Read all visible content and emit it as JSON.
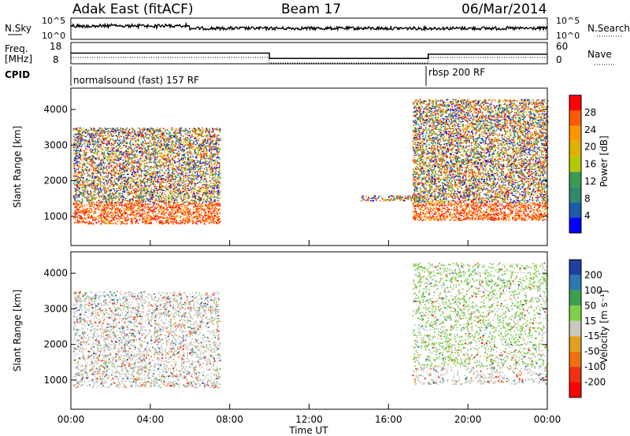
{
  "header": {
    "station": "Adak East (fitACF)",
    "beam": "Beam 17",
    "date": "06/Mar/2014"
  },
  "panels": {
    "nsky": {
      "label": "N.Sky",
      "tick_top": "10^5",
      "tick_bottom": "10^0",
      "right_label": "N.Search",
      "right_tick_top": "10^5",
      "right_tick_bottom": "10^0"
    },
    "freq": {
      "label_line1": "Freq.",
      "label_line2": "[MHz]",
      "tick_top": "18",
      "tick_bottom": "8",
      "right_label": "Nave",
      "right_tick_top": "60",
      "right_tick_bottom": "0"
    },
    "cpid": {
      "label": "CPID",
      "mode_1": "normalsound (fast) 157 RF",
      "mode_2": "rbsp 200 RF"
    }
  },
  "power_panel": {
    "ylabel": "Slant Range [km]",
    "yticks": [
      "1000",
      "2000",
      "3000",
      "4000"
    ],
    "colorbar_label": "Power [dB]",
    "colorbar_ticks": [
      "28",
      "24",
      "20",
      "16",
      "12",
      "8",
      "4"
    ],
    "colors": [
      "#ff0000",
      "#ff5a00",
      "#ff9600",
      "#e0b000",
      "#b8c800",
      "#3c9a50",
      "#2e8a6a",
      "#1c5aaa",
      "#0000ff"
    ]
  },
  "velocity_panel": {
    "ylabel": "Slant Range [km]",
    "yticks": [
      "1000",
      "2000",
      "3000",
      "4000"
    ],
    "colorbar_label": "Velocity [m s⁻¹]",
    "colorbar_ticks": [
      "200",
      "100",
      "50",
      "15",
      "-15",
      "-50",
      "-100",
      "-200"
    ],
    "colors": [
      "#1f3fa0",
      "#2a7ab0",
      "#3aa050",
      "#7ed048",
      "#c8c8c0",
      "#e0a020",
      "#f07010",
      "#f03010",
      "#ff0000"
    ]
  },
  "xaxis": {
    "label": "Time UT",
    "ticks": [
      "00:00",
      "04:00",
      "08:00",
      "12:00",
      "16:00",
      "20:00",
      "00:00"
    ]
  },
  "chart_data": {
    "type": "heatmap",
    "title": "Adak East (fitACF)",
    "subtitle": "Beam 17",
    "xlabel": "Time UT",
    "ylabel": "Slant Range [km]",
    "x_range_hours": [
      0,
      24
    ],
    "y_range_km": [
      180,
      4600
    ],
    "cpid_modes": [
      {
        "name": "normalsound (fast) 157 RF",
        "start_hour": 0,
        "end_hour": 18
      },
      {
        "name": "rbsp 200 RF",
        "start_hour": 18,
        "end_hour": 24
      }
    ],
    "frequency_mhz": [
      {
        "start_hour": 0,
        "end_hour": 10,
        "value": 13
      },
      {
        "start_hour": 10,
        "end_hour": 18,
        "value": 10.5
      },
      {
        "start_hour": 18,
        "end_hour": 24,
        "value": 12.5
      }
    ],
    "scatter_regions": [
      {
        "panel": "power",
        "t0": 0.1,
        "t1": 7.5,
        "r0": 800,
        "r1": 3500,
        "dominant_db": 20
      },
      {
        "panel": "power",
        "t0": 14.6,
        "t1": 17.8,
        "r0": 1450,
        "r1": 1600,
        "dominant_db": 4
      },
      {
        "panel": "power",
        "t0": 17.2,
        "t1": 24,
        "r0": 900,
        "r1": 4300,
        "dominant_db": 24
      },
      {
        "panel": "velocity",
        "t0": 0.1,
        "t1": 7.5,
        "r0": 800,
        "r1": 3500,
        "dominant_ms": 0
      },
      {
        "panel": "velocity",
        "t0": 17.2,
        "t1": 24,
        "r0": 900,
        "r1": 4300,
        "dominant_ms": 0
      }
    ]
  }
}
